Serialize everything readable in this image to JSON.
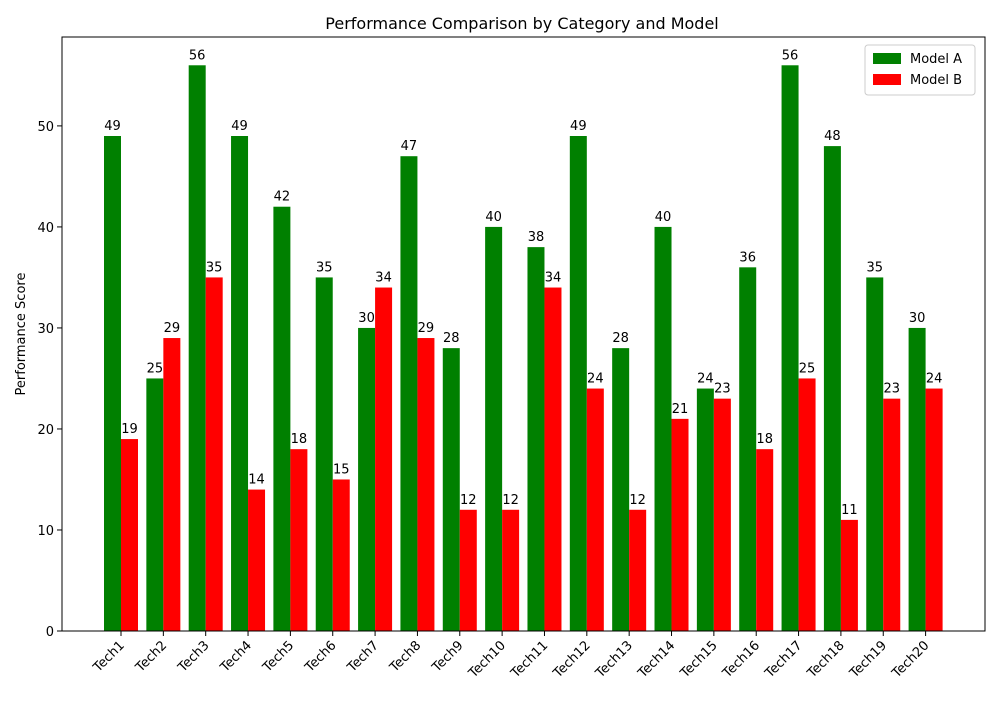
{
  "chart_data": {
    "type": "bar",
    "title": "Performance Comparison by Category and Model",
    "xlabel": "",
    "ylabel": "Performance Score",
    "categories": [
      "Tech1",
      "Tech2",
      "Tech3",
      "Tech4",
      "Tech5",
      "Tech6",
      "Tech7",
      "Tech8",
      "Tech9",
      "Tech10",
      "Tech11",
      "Tech12",
      "Tech13",
      "Tech14",
      "Tech15",
      "Tech16",
      "Tech17",
      "Tech18",
      "Tech19",
      "Tech20"
    ],
    "series": [
      {
        "name": "Model A",
        "color": "#008000",
        "values": [
          49,
          25,
          56,
          49,
          42,
          35,
          30,
          47,
          28,
          40,
          38,
          49,
          28,
          40,
          24,
          36,
          56,
          48,
          35,
          30
        ]
      },
      {
        "name": "Model B",
        "color": "#ff0000",
        "values": [
          19,
          29,
          35,
          14,
          18,
          15,
          34,
          29,
          12,
          12,
          34,
          24,
          12,
          21,
          23,
          18,
          25,
          11,
          23,
          24
        ]
      }
    ],
    "ylim": [
      0,
      58.8
    ],
    "yticks": [
      0,
      10,
      20,
      30,
      40,
      50
    ],
    "grid": false,
    "legend_position": "top-right",
    "data_labels": true
  }
}
